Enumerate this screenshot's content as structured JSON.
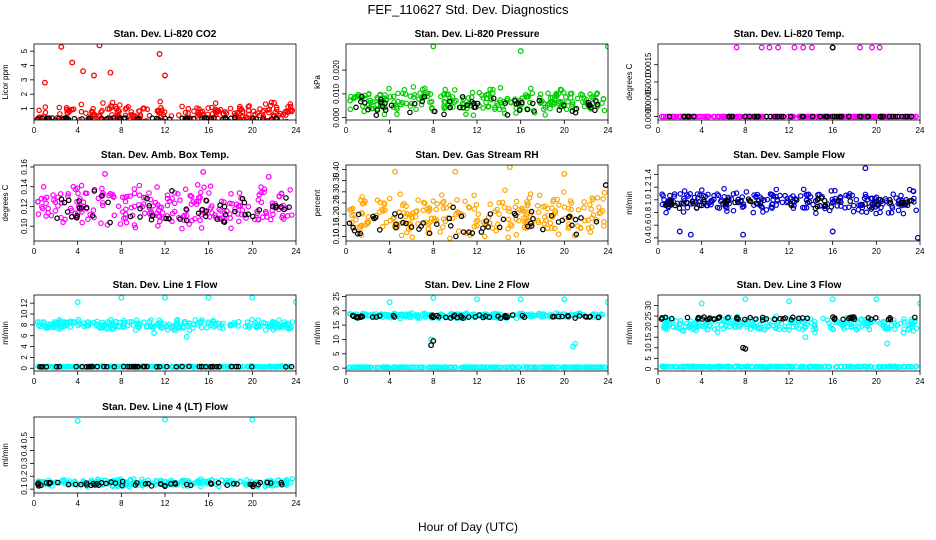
{
  "figure": {
    "title": "FEF_110627  Std. Dev. Diagnostics",
    "xlabel": "Hour of Day (UTC)"
  },
  "colors": {
    "red": "#ff0000",
    "green": "#00cc00",
    "magenta": "#ff00ff",
    "orange": "#ffa500",
    "blue": "#0000cc",
    "cyan": "#00ffff",
    "black": "#000000"
  },
  "chart_data": [
    {
      "type": "scatter",
      "title": "Stan. Dev. Li-820 CO2",
      "ylabel": "Licor ppm",
      "xlim": [
        0,
        24
      ],
      "ylim": [
        0.2,
        5.5
      ],
      "xticks": [
        0,
        4,
        8,
        12,
        16,
        20,
        24
      ],
      "yticks": [
        1,
        2,
        3,
        4,
        5
      ],
      "ytick_labels": [
        "1",
        "2",
        "3",
        "4",
        "5"
      ],
      "series": [
        {
          "color": "red",
          "base": 0.6,
          "spread": 0.9,
          "outliers": [
            [
              2.5,
              5.3
            ],
            [
              6.0,
              5.4
            ],
            [
              11.5,
              4.8
            ],
            [
              3.5,
              4.2
            ],
            [
              4.5,
              3.6
            ],
            [
              7.0,
              3.5
            ],
            [
              1.0,
              2.8
            ],
            [
              5.5,
              3.3
            ],
            [
              12.0,
              3.3
            ],
            [
              22.0,
              1.4
            ]
          ]
        },
        {
          "color": "black",
          "base": 0.3,
          "spread": 0.08,
          "outliers": []
        }
      ]
    },
    {
      "type": "scatter",
      "title": "Stan. Dev. Li-820 Pressure",
      "ylabel": "kPa",
      "xlim": [
        0,
        24
      ],
      "ylim": [
        -0.001,
        0.031
      ],
      "xticks": [
        0,
        4,
        8,
        12,
        16,
        20,
        24
      ],
      "yticks": [
        0.0,
        0.01,
        0.02
      ],
      "ytick_labels": [
        "0.000",
        "0.010",
        "0.020"
      ],
      "series": [
        {
          "color": "green",
          "base": 0.007,
          "spread": 0.006,
          "outliers": [
            [
              8.0,
              0.03
            ],
            [
              16.0,
              0.028
            ],
            [
              24.0,
              0.03
            ]
          ]
        },
        {
          "color": "black",
          "base": 0.005,
          "spread": 0.004,
          "outliers": []
        }
      ]
    },
    {
      "type": "scatter",
      "title": "Stan. Dev. Li-820 Temp.",
      "ylabel": "degrees C",
      "xlim": [
        0,
        24
      ],
      "ylim": [
        -0.0001,
        0.0021
      ],
      "xticks": [
        0,
        4,
        8,
        12,
        16,
        20,
        24
      ],
      "yticks": [
        0.0,
        0.0005,
        0.001,
        0.0015
      ],
      "ytick_labels": [
        "0.0000",
        "0.0005",
        "0.0010",
        "0.0015"
      ],
      "series": [
        {
          "color": "magenta",
          "base": 0.0,
          "spread": 0.0,
          "outliers": [
            [
              7.2,
              0.002
            ],
            [
              9.5,
              0.002
            ],
            [
              10.2,
              0.002
            ],
            [
              11.0,
              0.002
            ],
            [
              12.5,
              0.002
            ],
            [
              13.3,
              0.002
            ],
            [
              14.1,
              0.002
            ],
            [
              16.0,
              0.002
            ],
            [
              18.5,
              0.002
            ],
            [
              19.6,
              0.002
            ],
            [
              20.3,
              0.002
            ]
          ]
        },
        {
          "color": "black",
          "base": 0.0,
          "spread": 0.0,
          "outliers": [
            [
              16.0,
              0.002
            ]
          ]
        }
      ]
    },
    {
      "type": "scatter",
      "title": "Stan. Dev. Amb. Box Temp.",
      "ylabel": "degrees C",
      "xlim": [
        0,
        24
      ],
      "ylim": [
        0.085,
        0.162
      ],
      "xticks": [
        0,
        4,
        8,
        12,
        16,
        20,
        24
      ],
      "yticks": [
        0.1,
        0.12,
        0.14,
        0.16
      ],
      "ytick_labels": [
        "0.10",
        "0.12",
        "0.14",
        "0.16"
      ],
      "series": [
        {
          "color": "magenta",
          "base": 0.12,
          "spread": 0.024,
          "outliers": [
            [
              15.5,
              0.155
            ],
            [
              6.5,
              0.153
            ],
            [
              21.5,
              0.15
            ]
          ]
        },
        {
          "color": "black",
          "base": 0.116,
          "spread": 0.02,
          "outliers": []
        }
      ]
    },
    {
      "type": "scatter",
      "title": "Stan. Dev. Gas Stream RH",
      "ylabel": "percent",
      "xlim": [
        0,
        24
      ],
      "ylim": [
        0.08,
        0.42
      ],
      "xticks": [
        0,
        4,
        8,
        12,
        16,
        20,
        24
      ],
      "yticks": [
        0.1,
        0.15,
        0.2,
        0.25,
        0.3,
        0.35,
        0.4
      ],
      "ytick_labels": [
        "0.10",
        "0.15",
        "0.20",
        "0.25",
        "0.30",
        "0.35",
        "0.40"
      ],
      "series": [
        {
          "color": "orange",
          "base": 0.2,
          "spread": 0.11,
          "outliers": [
            [
              15.0,
              0.41
            ],
            [
              4.5,
              0.39
            ],
            [
              10.0,
              0.39
            ],
            [
              20.0,
              0.38
            ]
          ]
        },
        {
          "color": "black",
          "base": 0.16,
          "spread": 0.08,
          "outliers": [
            [
              23.8,
              0.33
            ]
          ]
        }
      ]
    },
    {
      "type": "scatter",
      "title": "Stan. Dev. Sample Flow",
      "ylabel": "ml/min",
      "xlim": [
        0,
        24
      ],
      "ylim": [
        0.35,
        1.55
      ],
      "xticks": [
        0,
        4,
        8,
        12,
        16,
        20,
        24
      ],
      "yticks": [
        0.4,
        0.6,
        0.8,
        1.0,
        1.2,
        1.4
      ],
      "ytick_labels": [
        "0.4",
        "0.6",
        "0.8",
        "1.0",
        "1.2",
        "1.4"
      ],
      "series": [
        {
          "color": "blue",
          "base": 0.98,
          "spread": 0.2,
          "outliers": [
            [
              23.8,
              0.4
            ],
            [
              7.8,
              0.45
            ],
            [
              2.0,
              0.5
            ],
            [
              3.0,
              0.45
            ],
            [
              16.0,
              0.5
            ],
            [
              19.0,
              1.5
            ]
          ]
        },
        {
          "color": "black",
          "base": 0.95,
          "spread": 0.1,
          "outliers": []
        }
      ]
    },
    {
      "type": "scatter",
      "title": "Stan. Dev. Line 1 Flow",
      "ylabel": "ml/min",
      "xlim": [
        0,
        24
      ],
      "ylim": [
        -0.5,
        13.5
      ],
      "xticks": [
        0,
        4,
        8,
        12,
        16,
        20,
        24
      ],
      "yticks": [
        0,
        2,
        4,
        6,
        8,
        10,
        12
      ],
      "ytick_labels": [
        "0",
        "2",
        "4",
        "6",
        "8",
        "10",
        "12"
      ],
      "series": [
        {
          "color": "cyan",
          "base": 8.0,
          "spread": 1.0,
          "outliers": [
            [
              4.0,
              12.2
            ],
            [
              8.0,
              13.0
            ],
            [
              12.0,
              13.0
            ],
            [
              16.0,
              13.0
            ],
            [
              20.0,
              13.0
            ],
            [
              24.0,
              12.2
            ],
            [
              11.0,
              6.5
            ],
            [
              14.0,
              5.8
            ]
          ]
        },
        {
          "color": "cyan",
          "base": 0.3,
          "spread": 0.1,
          "outliers": []
        },
        {
          "color": "black",
          "base": 0.3,
          "spread": 0.05,
          "outliers": []
        }
      ]
    },
    {
      "type": "scatter",
      "title": "Stan. Dev. Line 2 Flow",
      "ylabel": "ml/min",
      "xlim": [
        0,
        24
      ],
      "ylim": [
        -1,
        25.5
      ],
      "xticks": [
        0,
        4,
        8,
        12,
        16,
        20,
        24
      ],
      "yticks": [
        0,
        5,
        10,
        15,
        20,
        25
      ],
      "ytick_labels": [
        "0",
        "5",
        "10",
        "15",
        "20",
        "25"
      ],
      "series": [
        {
          "color": "cyan",
          "base": 18.3,
          "spread": 1.0,
          "outliers": [
            [
              4.0,
              23.0
            ],
            [
              8.0,
              24.5
            ],
            [
              12.0,
              24.0
            ],
            [
              16.0,
              24.0
            ],
            [
              20.0,
              24.0
            ],
            [
              24.0,
              23.0
            ],
            [
              7.8,
              10.0
            ],
            [
              20.8,
              7.5
            ],
            [
              21.0,
              8.5
            ]
          ]
        },
        {
          "color": "cyan",
          "base": 0.3,
          "spread": 0.1,
          "outliers": []
        },
        {
          "color": "black",
          "base": 18.0,
          "spread": 0.6,
          "outliers": [
            [
              7.8,
              8.0
            ],
            [
              8.0,
              9.5
            ]
          ]
        }
      ]
    },
    {
      "type": "scatter",
      "title": "Stan. Dev. Line 3 Flow",
      "ylabel": "ml/min",
      "xlim": [
        0,
        24
      ],
      "ylim": [
        -1,
        35
      ],
      "xticks": [
        0,
        4,
        8,
        12,
        16,
        20,
        24
      ],
      "yticks": [
        0,
        5,
        10,
        15,
        20,
        25,
        30
      ],
      "ytick_labels": [
        "0",
        "5",
        "10",
        "15",
        "20",
        "25",
        "30"
      ],
      "series": [
        {
          "color": "cyan",
          "base": 21.0,
          "spread": 4.0,
          "outliers": [
            [
              4.0,
              31.0
            ],
            [
              8.0,
              33.0
            ],
            [
              12.0,
              32.0
            ],
            [
              16.0,
              33.0
            ],
            [
              20.0,
              33.0
            ],
            [
              24.0,
              31.0
            ],
            [
              13.5,
              15.0
            ],
            [
              21.0,
              12.0
            ]
          ]
        },
        {
          "color": "cyan",
          "base": 1.0,
          "spread": 0.3,
          "outliers": []
        },
        {
          "color": "black",
          "base": 24.0,
          "spread": 1.0,
          "outliers": [
            [
              7.8,
              10.0
            ],
            [
              8.0,
              9.5
            ]
          ]
        }
      ]
    },
    {
      "type": "scatter",
      "title": "Stan. Dev. Line 4 (LT) Flow",
      "ylabel": "ml/min",
      "xlim": [
        0,
        24
      ],
      "ylim": [
        0.07,
        0.66
      ],
      "xticks": [
        0,
        4,
        8,
        12,
        16,
        20,
        24
      ],
      "yticks": [
        0.1,
        0.2,
        0.3,
        0.4,
        0.5
      ],
      "ytick_labels": [
        "0.1",
        "0.2",
        "0.3",
        "0.4",
        "0.5"
      ],
      "series": [
        {
          "color": "cyan",
          "base": 0.15,
          "spread": 0.03,
          "outliers": [
            [
              4.0,
              0.63
            ],
            [
              12.0,
              0.64
            ],
            [
              20.0,
              0.64
            ]
          ]
        },
        {
          "color": "black",
          "base": 0.14,
          "spread": 0.02,
          "outliers": []
        }
      ]
    }
  ]
}
